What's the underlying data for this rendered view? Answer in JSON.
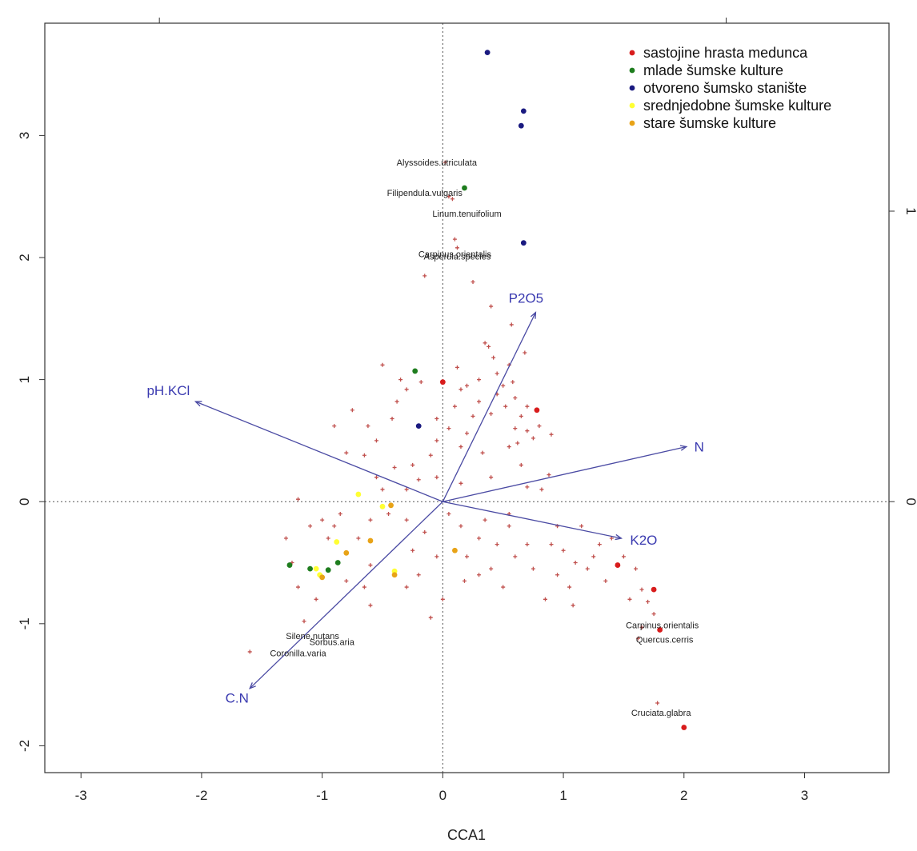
{
  "chart_data": {
    "type": "scatter",
    "xlabel": "CCA1",
    "ylabel": "",
    "xlim": [
      -3.3,
      3.7
    ],
    "ylim": [
      -2.22,
      3.92
    ],
    "x_ticks": [
      "-3",
      "-2",
      "-1",
      "0",
      "1",
      "2",
      "3"
    ],
    "y_ticks": [
      "-2",
      "-1",
      "0",
      "1",
      "2",
      "3"
    ],
    "right_ticks": [
      "1",
      "0"
    ],
    "right_tick_values": [
      2.38,
      0
    ],
    "top_tick_values": [
      -2.35,
      2.35
    ],
    "grid": false,
    "legend_position": "top-right",
    "colors": {
      "vector": "#4a4aa3",
      "vector_label": "#3a3ab0",
      "species": "#c0504d",
      "reference_line": "#555555"
    },
    "series": [
      {
        "name": "sastojine hrasta medunca",
        "color": "#d81c1c",
        "points": [
          [
            0.0,
            0.98
          ],
          [
            0.78,
            0.75
          ],
          [
            1.45,
            -0.52
          ],
          [
            1.75,
            -0.72
          ],
          [
            1.8,
            -1.05
          ],
          [
            2.0,
            -1.85
          ]
        ]
      },
      {
        "name": "mlade šumske kulture",
        "color": "#1e7d1e",
        "points": [
          [
            0.18,
            2.57
          ],
          [
            -0.23,
            1.07
          ],
          [
            -1.27,
            -0.52
          ],
          [
            -1.1,
            -0.55
          ],
          [
            -0.95,
            -0.56
          ],
          [
            -0.87,
            -0.5
          ]
        ]
      },
      {
        "name": "otvoreno šumsko stanište",
        "color": "#1a1a80",
        "points": [
          [
            0.37,
            3.68
          ],
          [
            0.67,
            3.2
          ],
          [
            0.65,
            3.08
          ],
          [
            0.67,
            2.12
          ],
          [
            -0.2,
            0.62
          ]
        ]
      },
      {
        "name": "srednjedobne šumske kulture",
        "color": "#ffff33",
        "points": [
          [
            -0.7,
            0.06
          ],
          [
            -0.88,
            -0.33
          ],
          [
            -1.05,
            -0.55
          ],
          [
            -1.02,
            -0.6
          ],
          [
            -0.4,
            -0.57
          ],
          [
            -0.5,
            -0.04
          ]
        ]
      },
      {
        "name": "stare šumske kulture",
        "color": "#e8a317",
        "points": [
          [
            -0.43,
            -0.03
          ],
          [
            -0.6,
            -0.32
          ],
          [
            -0.8,
            -0.42
          ],
          [
            -1.0,
            -0.62
          ],
          [
            0.1,
            -0.4
          ],
          [
            -0.4,
            -0.6
          ]
        ]
      }
    ],
    "vectors": [
      {
        "name": "pH.KCl",
        "x": -2.05,
        "y": 0.82
      },
      {
        "name": "P2O5",
        "x": 0.77,
        "y": 1.55
      },
      {
        "name": "N",
        "x": 2.02,
        "y": 0.45
      },
      {
        "name": "K2O",
        "x": 1.48,
        "y": -0.3
      },
      {
        "name": "C.N",
        "x": -1.6,
        "y": -1.53
      }
    ],
    "species_labels": [
      {
        "text": "Alyssoides.utriculata",
        "x": -0.05,
        "y": 2.78
      },
      {
        "text": "Filipendula.vulgaris",
        "x": -0.15,
        "y": 2.53
      },
      {
        "text": "Linum.tenuifolium",
        "x": 0.2,
        "y": 2.36
      },
      {
        "text": "Carpinus.orientalis",
        "x": 0.1,
        "y": 2.03
      },
      {
        "text": "Asperula.species",
        "x": 0.12,
        "y": 2.01
      },
      {
        "text": "Silene.nutans",
        "x": -1.08,
        "y": -1.1
      },
      {
        "text": "Sorbus.aria",
        "x": -0.92,
        "y": -1.15
      },
      {
        "text": "Coronilla.varia",
        "x": -1.2,
        "y": -1.24
      },
      {
        "text": "Carpinus.orientalis",
        "x": 1.82,
        "y": -1.01
      },
      {
        "text": "Quercus.cerris",
        "x": 1.84,
        "y": -1.13
      },
      {
        "text": "Cruciata.glabra",
        "x": 1.81,
        "y": -1.73
      }
    ],
    "species_points": [
      [
        0.02,
        2.78
      ],
      [
        0.05,
        2.5
      ],
      [
        0.08,
        2.48
      ],
      [
        0.1,
        2.15
      ],
      [
        0.12,
        2.08
      ],
      [
        -0.15,
        1.85
      ],
      [
        0.25,
        1.8
      ],
      [
        0.4,
        1.6
      ],
      [
        0.57,
        1.45
      ],
      [
        0.35,
        1.3
      ],
      [
        0.38,
        1.27
      ],
      [
        0.42,
        1.18
      ],
      [
        0.55,
        1.12
      ],
      [
        0.58,
        0.98
      ],
      [
        0.5,
        0.95
      ],
      [
        0.2,
        0.95
      ],
      [
        0.68,
        1.22
      ],
      [
        0.3,
        1.0
      ],
      [
        0.15,
        0.92
      ],
      [
        -0.5,
        1.12
      ],
      [
        -0.3,
        0.92
      ],
      [
        -0.18,
        0.98
      ],
      [
        0.45,
        0.88
      ],
      [
        0.6,
        0.85
      ],
      [
        0.3,
        0.82
      ],
      [
        0.7,
        0.78
      ],
      [
        0.1,
        0.78
      ],
      [
        0.52,
        0.78
      ],
      [
        0.65,
        0.7
      ],
      [
        0.8,
        0.62
      ],
      [
        0.4,
        0.72
      ],
      [
        0.6,
        0.6
      ],
      [
        0.7,
        0.58
      ],
      [
        0.9,
        0.55
      ],
      [
        0.75,
        0.52
      ],
      [
        -0.75,
        0.75
      ],
      [
        -0.38,
        0.82
      ],
      [
        -0.62,
        0.62
      ],
      [
        -0.55,
        0.5
      ],
      [
        -0.05,
        0.5
      ],
      [
        0.2,
        0.56
      ],
      [
        0.55,
        0.45
      ],
      [
        0.62,
        0.48
      ],
      [
        0.05,
        0.6
      ],
      [
        -0.9,
        0.62
      ],
      [
        -0.8,
        0.4
      ],
      [
        -0.65,
        0.38
      ],
      [
        -0.4,
        0.28
      ],
      [
        -0.25,
        0.3
      ],
      [
        -0.1,
        0.38
      ],
      [
        0.15,
        0.45
      ],
      [
        0.33,
        0.4
      ],
      [
        0.65,
        0.3
      ],
      [
        0.4,
        0.2
      ],
      [
        0.88,
        0.22
      ],
      [
        0.82,
        0.1
      ],
      [
        0.7,
        0.12
      ],
      [
        0.15,
        0.15
      ],
      [
        -0.3,
        0.1
      ],
      [
        -0.5,
        0.1
      ],
      [
        -1.2,
        0.02
      ],
      [
        -1.1,
        -0.2
      ],
      [
        -1.0,
        -0.15
      ],
      [
        -0.95,
        -0.3
      ],
      [
        -0.7,
        -0.3
      ],
      [
        -0.6,
        -0.15
      ],
      [
        -0.45,
        -0.1
      ],
      [
        -0.3,
        -0.15
      ],
      [
        -0.15,
        -0.25
      ],
      [
        0.05,
        -0.1
      ],
      [
        0.15,
        -0.2
      ],
      [
        0.3,
        -0.3
      ],
      [
        0.35,
        -0.15
      ],
      [
        0.45,
        -0.35
      ],
      [
        0.55,
        -0.2
      ],
      [
        0.7,
        -0.35
      ],
      [
        0.9,
        -0.35
      ],
      [
        1.0,
        -0.4
      ],
      [
        1.1,
        -0.5
      ],
      [
        1.25,
        -0.45
      ],
      [
        1.3,
        -0.35
      ],
      [
        1.4,
        -0.3
      ],
      [
        0.2,
        -0.45
      ],
      [
        0.4,
        -0.55
      ],
      [
        0.6,
        -0.45
      ],
      [
        0.75,
        -0.55
      ],
      [
        0.95,
        -0.6
      ],
      [
        1.05,
        -0.7
      ],
      [
        1.08,
        -0.85
      ],
      [
        0.85,
        -0.8
      ],
      [
        1.5,
        -0.45
      ],
      [
        1.6,
        -0.55
      ],
      [
        1.65,
        -0.72
      ],
      [
        1.75,
        -0.92
      ],
      [
        1.55,
        -0.8
      ],
      [
        1.7,
        -0.82
      ],
      [
        1.78,
        -1.65
      ],
      [
        1.62,
        -1.12
      ],
      [
        1.65,
        -1.03
      ],
      [
        -1.3,
        -0.3
      ],
      [
        -1.25,
        -0.5
      ],
      [
        -1.2,
        -0.7
      ],
      [
        -0.6,
        -0.52
      ],
      [
        -0.8,
        -0.65
      ],
      [
        -0.65,
        -0.7
      ],
      [
        -0.3,
        -0.7
      ],
      [
        -0.2,
        -0.6
      ],
      [
        -0.05,
        -0.45
      ],
      [
        0.0,
        -0.8
      ],
      [
        -1.15,
        -0.98
      ],
      [
        -1.6,
        -1.23
      ],
      [
        -0.1,
        -0.95
      ],
      [
        -0.9,
        -0.2
      ],
      [
        -0.55,
        0.2
      ],
      [
        0.25,
        0.7
      ],
      [
        -0.05,
        0.68
      ],
      [
        0.3,
        -0.6
      ],
      [
        1.15,
        -0.2
      ],
      [
        1.2,
        -0.55
      ],
      [
        0.5,
        -0.7
      ],
      [
        -0.6,
        -0.85
      ],
      [
        -1.05,
        -0.8
      ],
      [
        -0.35,
        1.0
      ],
      [
        0.45,
        1.05
      ],
      [
        0.12,
        1.1
      ],
      [
        -0.42,
        0.68
      ],
      [
        -0.2,
        0.18
      ],
      [
        -0.05,
        0.2
      ],
      [
        0.95,
        -0.2
      ],
      [
        1.35,
        -0.65
      ],
      [
        0.55,
        -0.1
      ],
      [
        -0.85,
        -0.1
      ],
      [
        -0.25,
        -0.4
      ],
      [
        0.18,
        -0.65
      ]
    ]
  },
  "legend": {
    "items": [
      {
        "label": "sastojine hrasta medunca",
        "color": "#d81c1c"
      },
      {
        "label": " mlade šumske kulture",
        "color": "#1e7d1e"
      },
      {
        "label": " otvoreno šumsko stanište",
        "color": "#1a1a80"
      },
      {
        "label": "srednjedobne šumske kulture",
        "color": "#ffff33"
      },
      {
        "label": " stare šumske kulture",
        "color": "#e8a317"
      }
    ]
  }
}
